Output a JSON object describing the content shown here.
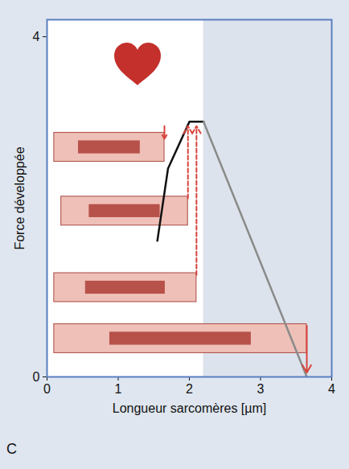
{
  "chart_data": {
    "type": "line",
    "xlabel": "Longueur sarcomères [µm]",
    "ylabel": "Force développée",
    "panel": "C",
    "xlim": [
      0,
      4
    ],
    "ylim": [
      0,
      4.2
    ],
    "xticks": [
      0,
      1,
      2,
      3,
      4
    ],
    "yticks": [
      0,
      4
    ],
    "shaded_x": [
      2.2,
      4
    ],
    "series": [
      {
        "color": "#111111",
        "x": [
          1.55,
          1.7,
          2.0,
          2.2
        ],
        "values": [
          1.6,
          2.45,
          3.0,
          3.0
        ]
      },
      {
        "color": "#8a8a8a",
        "x": [
          2.2,
          3.65
        ],
        "values": [
          3.0,
          0
        ]
      }
    ],
    "sarcomeres": [
      {
        "x0": 0.1,
        "length": 1.65,
        "y": 2.7
      },
      {
        "x0": 0.2,
        "length": 1.98,
        "y": 1.95
      },
      {
        "x0": 0.1,
        "length": 2.1,
        "y": 1.05
      },
      {
        "x0": 0.1,
        "length": 3.65,
        "y": 0.45
      }
    ],
    "arrows": [
      {
        "x": 1.65,
        "from": 2.95,
        "to": 2.8,
        "line_style": "solid"
      },
      {
        "x": 1.98,
        "from": 2.1,
        "to": 2.95,
        "line_style": "dashed"
      },
      {
        "x": 2.1,
        "from": 1.2,
        "to": 2.95,
        "line_style": "dashed"
      },
      {
        "x": 3.65,
        "from": 0.6,
        "to": 0.05,
        "line_style": "solid"
      }
    ]
  }
}
